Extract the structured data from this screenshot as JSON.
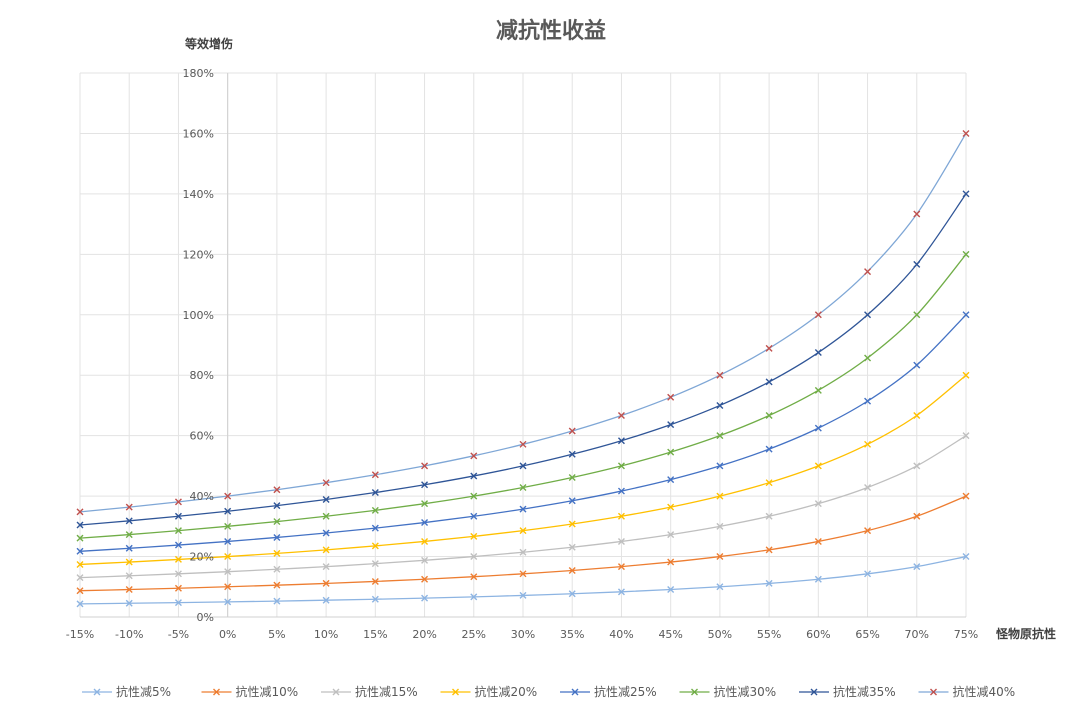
{
  "chart_data": {
    "type": "line",
    "title": "减抗性收益",
    "ylabel": "等效增伤",
    "xlabel": "怪物原抗性",
    "categories": [
      "-15%",
      "-10%",
      "-5%",
      "0%",
      "5%",
      "10%",
      "15%",
      "20%",
      "25%",
      "30%",
      "35%",
      "40%",
      "45%",
      "50%",
      "55%",
      "60%",
      "65%",
      "70%",
      "75%"
    ],
    "x": [
      -15,
      -10,
      -5,
      0,
      5,
      10,
      15,
      20,
      25,
      30,
      35,
      40,
      45,
      50,
      55,
      60,
      65,
      70,
      75
    ],
    "ylim": [
      0,
      180
    ],
    "yticks": [
      "0%",
      "20%",
      "40%",
      "60%",
      "80%",
      "100%",
      "120%",
      "140%",
      "160%",
      "180%"
    ],
    "grid": true,
    "legend_position": "bottom",
    "series": [
      {
        "name": "抗性减5%",
        "color": "#8DB4E2",
        "values": [
          4.35,
          4.55,
          4.76,
          5.0,
          5.26,
          5.56,
          5.88,
          6.25,
          6.67,
          7.14,
          7.69,
          8.33,
          9.09,
          10.0,
          11.11,
          12.5,
          14.29,
          16.67,
          20.0
        ]
      },
      {
        "name": "抗性减10%",
        "color": "#ED7D31",
        "values": [
          8.7,
          9.09,
          9.52,
          10.0,
          10.53,
          11.11,
          11.76,
          12.5,
          13.33,
          14.29,
          15.38,
          16.67,
          18.18,
          20.0,
          22.22,
          25.0,
          28.57,
          33.33,
          40.0
        ]
      },
      {
        "name": "抗性减15%",
        "color": "#BFBFBF",
        "values": [
          13.04,
          13.64,
          14.29,
          15.0,
          15.79,
          16.67,
          17.65,
          18.75,
          20.0,
          21.43,
          23.08,
          25.0,
          27.27,
          30.0,
          33.33,
          37.5,
          42.86,
          50.0,
          60.0
        ]
      },
      {
        "name": "抗性减20%",
        "color": "#FFC000",
        "values": [
          17.39,
          18.18,
          19.05,
          20.0,
          21.05,
          22.22,
          23.53,
          25.0,
          26.67,
          28.57,
          30.77,
          33.33,
          36.36,
          40.0,
          44.44,
          50.0,
          57.14,
          66.67,
          80.0
        ]
      },
      {
        "name": "抗性减25%",
        "color": "#4472C4",
        "values": [
          21.74,
          22.73,
          23.81,
          25.0,
          26.32,
          27.78,
          29.41,
          31.25,
          33.33,
          35.71,
          38.46,
          41.67,
          45.45,
          50.0,
          55.56,
          62.5,
          71.43,
          83.33,
          100.0
        ]
      },
      {
        "name": "抗性减30%",
        "color": "#70AD47",
        "values": [
          26.09,
          27.27,
          28.57,
          30.0,
          31.58,
          33.33,
          35.29,
          37.5,
          40.0,
          42.86,
          46.15,
          50.0,
          54.55,
          60.0,
          66.67,
          75.0,
          85.71,
          100.0,
          120.0
        ]
      },
      {
        "name": "抗性减35%",
        "color": "#2F5597",
        "values": [
          30.43,
          31.82,
          33.33,
          35.0,
          36.84,
          38.89,
          41.18,
          43.75,
          46.67,
          50.0,
          53.85,
          58.33,
          63.64,
          70.0,
          77.78,
          87.5,
          100.0,
          116.67,
          140.0
        ]
      },
      {
        "name": "抗性减40%",
        "color": "#7FA7D6",
        "marker_color": "#C0504D",
        "values": [
          34.78,
          36.36,
          38.1,
          40.0,
          42.11,
          44.44,
          47.06,
          50.0,
          53.33,
          57.14,
          61.54,
          66.67,
          72.73,
          80.0,
          88.89,
          100.0,
          114.29,
          133.33,
          160.0
        ]
      }
    ]
  }
}
